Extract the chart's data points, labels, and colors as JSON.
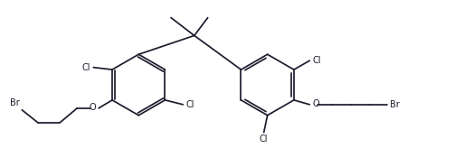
{
  "bg_color": "#ffffff",
  "line_color": "#1c1c2e",
  "line_width": 1.25,
  "font_size": 7.0,
  "fig_width": 5.03,
  "fig_height": 1.85,
  "dpi": 100,
  "xlim": [
    0,
    10.06
  ],
  "ylim": [
    0,
    3.7
  ]
}
